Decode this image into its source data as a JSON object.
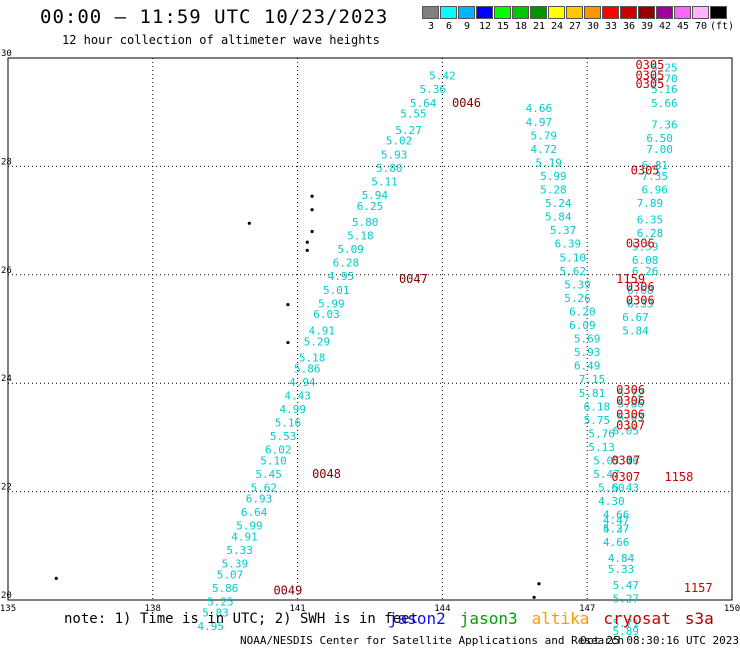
{
  "header": {
    "title": "00:00 – 11:59 UTC 10/23/2023",
    "subtitle": "12 hour collection of altimeter wave heights"
  },
  "colorbar": {
    "colors": [
      "#808080",
      "#00ffff",
      "#00b4ff",
      "#0000ff",
      "#00ff00",
      "#00c800",
      "#009600",
      "#ffff00",
      "#ffc800",
      "#ff9600",
      "#ff0000",
      "#c80000",
      "#960000",
      "#a000a0",
      "#ff64ff",
      "#ffb4ff",
      "#000000"
    ],
    "ticks": [
      "3",
      "6",
      "9",
      "12",
      "15",
      "18",
      "21",
      "24",
      "27",
      "30",
      "33",
      "36",
      "39",
      "42",
      "45",
      "70",
      "(ft)"
    ]
  },
  "chart_data": {
    "type": "scatter",
    "title": "12 hour collection of altimeter wave heights",
    "xlim": [
      135,
      150
    ],
    "ylim": [
      20,
      30
    ],
    "x_ticks": [
      "135",
      "138",
      "141",
      "144",
      "147",
      "150"
    ],
    "y_ticks": [
      "20",
      "22",
      "24",
      "26",
      "28",
      "30"
    ],
    "grid": true,
    "series": [
      {
        "name": "jason2",
        "color": "#00cccc",
        "points": [
          [
            144.0,
            29.6,
            "5.42"
          ],
          [
            143.8,
            29.35,
            "5.36"
          ],
          [
            143.6,
            29.1,
            "5.64"
          ],
          [
            143.4,
            28.9,
            "5.55"
          ],
          [
            143.3,
            28.6,
            "5.27"
          ],
          [
            143.1,
            28.4,
            "5.02"
          ],
          [
            143.0,
            28.15,
            "5.93"
          ],
          [
            142.9,
            27.9,
            "5.80"
          ],
          [
            142.8,
            27.65,
            "5.11"
          ],
          [
            142.6,
            27.4,
            "5.94"
          ],
          [
            142.5,
            27.2,
            "6.25"
          ],
          [
            142.4,
            26.9,
            "5.80"
          ],
          [
            142.3,
            26.65,
            "5.18"
          ],
          [
            142.1,
            26.4,
            "5.09"
          ],
          [
            142.0,
            26.15,
            "6.28"
          ],
          [
            141.9,
            25.9,
            "4.95"
          ],
          [
            141.8,
            25.65,
            "5.01"
          ],
          [
            141.7,
            25.4,
            "5.99"
          ],
          [
            141.6,
            25.2,
            "6.03"
          ],
          [
            141.5,
            24.9,
            "4.91"
          ],
          [
            141.4,
            24.7,
            "5.29"
          ],
          [
            141.3,
            24.4,
            "5.18"
          ],
          [
            141.2,
            24.2,
            "5.86"
          ],
          [
            141.1,
            23.95,
            "4.94"
          ],
          [
            141.0,
            23.7,
            "4.43"
          ],
          [
            140.9,
            23.45,
            "4.99"
          ],
          [
            140.8,
            23.2,
            "5.16"
          ],
          [
            140.7,
            22.95,
            "5.53"
          ],
          [
            140.6,
            22.7,
            "6.02"
          ],
          [
            140.5,
            22.5,
            "5.10"
          ],
          [
            140.4,
            22.25,
            "5.45"
          ],
          [
            140.3,
            22.0,
            "5.62"
          ],
          [
            140.2,
            21.8,
            "6.93"
          ],
          [
            140.1,
            21.55,
            "6.64"
          ],
          [
            140.0,
            21.3,
            "5.99"
          ],
          [
            139.9,
            21.1,
            "4.91"
          ],
          [
            139.8,
            20.85,
            "5.33"
          ],
          [
            139.7,
            20.6,
            "5.39"
          ],
          [
            139.6,
            20.4,
            "5.07"
          ],
          [
            139.5,
            20.15,
            "5.86"
          ],
          [
            139.4,
            19.9,
            "5.25"
          ],
          [
            139.3,
            19.7,
            "5.83"
          ],
          [
            139.2,
            19.45,
            "4.95"
          ]
        ]
      },
      {
        "name": "jason3",
        "color": "#00cccc",
        "points": [
          [
            146.0,
            29.0,
            "4.66"
          ],
          [
            146.0,
            28.75,
            "4.97"
          ],
          [
            146.1,
            28.5,
            "5.79"
          ],
          [
            146.1,
            28.25,
            "4.72"
          ],
          [
            146.2,
            28.0,
            "5.19"
          ],
          [
            146.3,
            27.75,
            "5.99"
          ],
          [
            146.3,
            27.5,
            "5.28"
          ],
          [
            146.4,
            27.25,
            "5.24"
          ],
          [
            146.4,
            27.0,
            "5.84"
          ],
          [
            146.5,
            26.75,
            "5.37"
          ],
          [
            146.6,
            26.5,
            "6.39"
          ],
          [
            146.7,
            26.25,
            "5.10"
          ],
          [
            146.7,
            26.0,
            "5.62"
          ],
          [
            146.8,
            25.75,
            "5.39"
          ],
          [
            146.8,
            25.5,
            "5.26"
          ],
          [
            146.9,
            25.25,
            "6.20"
          ],
          [
            146.9,
            25.0,
            "6.09"
          ],
          [
            147.0,
            24.75,
            "5.69"
          ],
          [
            147.0,
            24.5,
            "5.93"
          ],
          [
            147.0,
            24.25,
            "6.49"
          ],
          [
            147.1,
            24.0,
            "7.15"
          ],
          [
            147.1,
            23.75,
            "5.81"
          ],
          [
            147.2,
            23.5,
            "6.18"
          ],
          [
            147.2,
            23.25,
            "5.75"
          ],
          [
            147.3,
            23.0,
            "5.76"
          ],
          [
            147.3,
            22.75,
            "5.13"
          ],
          [
            147.4,
            22.5,
            "5.07"
          ],
          [
            147.4,
            22.25,
            "5.47"
          ],
          [
            147.5,
            22.0,
            "5.60"
          ],
          [
            147.5,
            21.75,
            "4.30"
          ],
          [
            147.6,
            21.5,
            "4.66"
          ],
          [
            147.6,
            21.25,
            "5.27"
          ]
        ]
      },
      {
        "name": "altika",
        "color": "#00cccc",
        "points": [
          [
            148.6,
            29.75,
            "5.25"
          ],
          [
            148.6,
            29.55,
            "5.70"
          ],
          [
            148.6,
            29.35,
            "5.16"
          ],
          [
            148.6,
            29.1,
            "5.66"
          ],
          [
            148.6,
            28.7,
            "7.36"
          ],
          [
            148.5,
            28.45,
            "6.50"
          ],
          [
            148.5,
            28.25,
            "7.00"
          ],
          [
            148.4,
            27.95,
            "6.81"
          ],
          [
            148.4,
            27.75,
            "7.35"
          ],
          [
            148.4,
            27.5,
            "6.96"
          ],
          [
            148.3,
            27.25,
            "7.89"
          ],
          [
            148.3,
            26.95,
            "6.35"
          ],
          [
            148.3,
            26.7,
            "6.28"
          ],
          [
            148.2,
            26.45,
            "5.59"
          ],
          [
            148.2,
            26.2,
            "6.08"
          ],
          [
            148.2,
            26.0,
            "6.26"
          ],
          [
            148.1,
            25.65,
            "6.68"
          ],
          [
            148.1,
            25.4,
            "6.33"
          ],
          [
            148.0,
            25.15,
            "6.67"
          ],
          [
            148.0,
            24.9,
            "5.84"
          ],
          [
            147.9,
            23.75,
            "5.72"
          ],
          [
            147.9,
            23.55,
            "5.86"
          ],
          [
            147.9,
            23.3,
            "5.63"
          ],
          [
            147.8,
            23.05,
            "6.05"
          ],
          [
            147.8,
            22.5,
            "5.46"
          ],
          [
            147.8,
            22.0,
            "5.43"
          ],
          [
            147.6,
            21.4,
            "4.47"
          ],
          [
            147.6,
            21.25,
            "4.37"
          ],
          [
            147.6,
            21.0,
            "4.66"
          ],
          [
            147.7,
            20.7,
            "4.84"
          ],
          [
            147.7,
            20.5,
            "5.33"
          ],
          [
            147.8,
            20.2,
            "5.47"
          ],
          [
            147.8,
            19.95,
            "5.27"
          ],
          [
            147.8,
            19.5,
            "5.71"
          ],
          [
            147.8,
            19.35,
            "5.89"
          ]
        ]
      }
    ],
    "time_labels": [
      {
        "text": "0305",
        "x": 148.0,
        "y": 29.8
      },
      {
        "text": "0305",
        "x": 148.0,
        "y": 29.6
      },
      {
        "text": "0305",
        "x": 148.0,
        "y": 29.45
      },
      {
        "text": "0046",
        "x": 144.2,
        "y": 29.1
      },
      {
        "text": "0305",
        "x": 147.9,
        "y": 27.85
      },
      {
        "text": "0306",
        "x": 147.8,
        "y": 26.5
      },
      {
        "text": "1159",
        "x": 147.6,
        "y": 25.85
      },
      {
        "text": "0306",
        "x": 147.8,
        "y": 25.7
      },
      {
        "text": "0306",
        "x": 147.8,
        "y": 25.45
      },
      {
        "text": "0047",
        "x": 143.1,
        "y": 25.85
      },
      {
        "text": "0306",
        "x": 147.6,
        "y": 23.8
      },
      {
        "text": "0306",
        "x": 147.6,
        "y": 23.6
      },
      {
        "text": "0306",
        "x": 147.6,
        "y": 23.35
      },
      {
        "text": "0307",
        "x": 147.6,
        "y": 23.15
      },
      {
        "text": "0307",
        "x": 147.5,
        "y": 22.5
      },
      {
        "text": "0307",
        "x": 147.5,
        "y": 22.2
      },
      {
        "text": "1158",
        "x": 148.6,
        "y": 22.2
      },
      {
        "text": "0048",
        "x": 141.3,
        "y": 22.25
      },
      {
        "text": "1157",
        "x": 149.0,
        "y": 20.15
      },
      {
        "text": "0049",
        "x": 140.5,
        "y": 20.1
      }
    ],
    "islands": [
      [
        141.3,
        27.45
      ],
      [
        141.3,
        27.2
      ],
      [
        140.0,
        26.95
      ],
      [
        141.3,
        26.8
      ],
      [
        141.2,
        26.6
      ],
      [
        141.2,
        26.45
      ],
      [
        140.8,
        25.45
      ],
      [
        140.8,
        24.75
      ],
      [
        146.0,
        20.3
      ],
      [
        145.9,
        20.05
      ],
      [
        136.0,
        20.4
      ]
    ]
  },
  "footer": {
    "note": "note:  1) Time is in UTC; 2) SWH is in feet",
    "legend": [
      {
        "name": "jason2",
        "color": "#1010ff"
      },
      {
        "name": "jason3",
        "color": "#00a000"
      },
      {
        "name": "altika",
        "color": "#ff9900"
      },
      {
        "name": "cryosat",
        "color": "#cc0000"
      },
      {
        "name": "s3a",
        "color": "#a00000"
      }
    ],
    "credit": "NOAA/NESDIS Center for Satellite Applications and Research",
    "timestamp": "Oct 25 08:30:16 UTC 2023"
  }
}
